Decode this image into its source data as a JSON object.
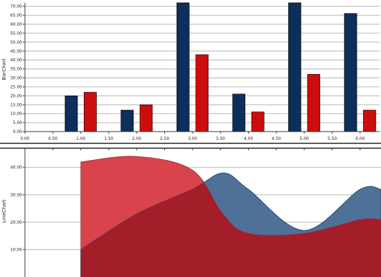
{
  "colors": {
    "navy": "#0e2e5c",
    "red": "#cc0d0d",
    "line_red": "#d8434c",
    "line_blue": "#4f7198",
    "overlap": "#a41e2a"
  },
  "chart_data": [
    {
      "type": "bar",
      "ylabel": "BarChart",
      "xlim": [
        0,
        6.35
      ],
      "ylim": [
        0,
        72
      ],
      "y_ticks": [
        "0.00",
        "5.00",
        "10.00",
        "15.00",
        "20.00",
        "25.00",
        "30.00",
        "35.00",
        "40.00",
        "45.00",
        "50.00",
        "55.00",
        "60.00",
        "65.00",
        "70.00"
      ],
      "x_ticks": [
        "0.00",
        "0.50",
        "1.00",
        "1.50",
        "2.00",
        "2.50",
        "3.00",
        "3.50",
        "4.00",
        "4.50",
        "5.00",
        "5.50",
        "6.00"
      ],
      "grid": true,
      "series": [
        {
          "x": [
            0.83,
            1.83,
            2.83,
            3.83,
            4.83,
            5.83
          ],
          "values": [
            20,
            12,
            73,
            21,
            72,
            66
          ],
          "color": "navy"
        },
        {
          "x": [
            1.17,
            2.17,
            3.17,
            4.17,
            5.17,
            6.17
          ],
          "values": [
            22,
            15,
            43,
            11,
            32,
            12
          ],
          "color": "red"
        }
      ]
    },
    {
      "type": "area",
      "ylabel": "LineChart",
      "ylim": [
        0,
        47
      ],
      "y_ticks": [
        "10.00",
        "20.00",
        "30.00",
        "40.00"
      ],
      "grid": true,
      "series": [
        {
          "x": [
            1,
            2,
            3,
            3.55,
            4,
            5,
            6
          ],
          "values": [
            42,
            44,
            39,
            23,
            16,
            16,
            21
          ],
          "color": "line_red"
        },
        {
          "x": [
            1,
            2,
            3,
            3.55,
            4,
            5,
            6
          ],
          "values": [
            10,
            23,
            32,
            38,
            32,
            17,
            32
          ],
          "color": "line_blue"
        }
      ]
    }
  ]
}
